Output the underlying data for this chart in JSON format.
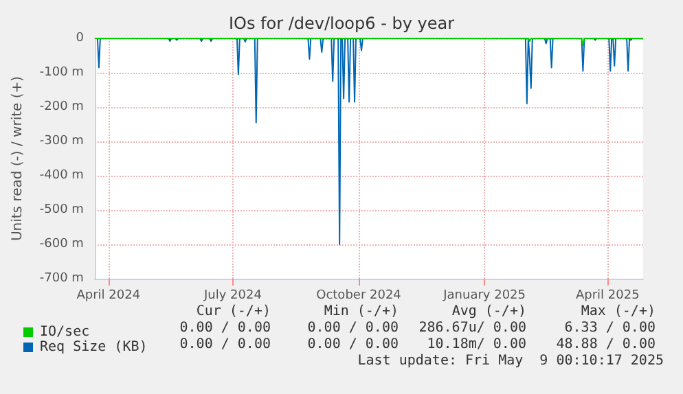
{
  "chart_data": {
    "type": "line",
    "title": "IOs for /dev/loop6 - by year",
    "ylabel": "Units read (-) / write (+)",
    "xlim": [
      "2024-03-22",
      "2025-04-27"
    ],
    "xticks": [
      {
        "value": "2024-04-01",
        "label": "April 2024"
      },
      {
        "value": "2024-07-01",
        "label": "July 2024"
      },
      {
        "value": "2024-10-01",
        "label": "October 2024"
      },
      {
        "value": "2025-01-01",
        "label": "January 2025"
      },
      {
        "value": "2025-04-01",
        "label": "April 2025"
      }
    ],
    "ylim": [
      -700,
      0
    ],
    "yticks": [
      {
        "value": -700,
        "label": "-700 m"
      },
      {
        "value": -600,
        "label": "-600 m"
      },
      {
        "value": -500,
        "label": "-500 m"
      },
      {
        "value": -400,
        "label": "-400 m"
      },
      {
        "value": -300,
        "label": "-300 m"
      },
      {
        "value": -200,
        "label": "-200 m"
      },
      {
        "value": -100,
        "label": "-100 m"
      },
      0
    ],
    "grid": true,
    "legend": "bottom left",
    "series": [
      {
        "name": "IO/sec",
        "color": "#00cc00",
        "x": [
          "2024-03-22",
          "2025-02-02",
          "2025-02-03",
          "2025-02-04",
          "2025-03-13",
          "2025-03-14",
          "2025-03-15",
          "2025-04-27"
        ],
        "values": [
          0,
          0,
          -8,
          0,
          0,
          -20,
          0,
          0
        ]
      },
      {
        "name": "Req Size (KB)",
        "color": "#0066b3",
        "x": [
          "2024-03-22",
          "2024-03-24",
          "2024-03-25",
          "2024-03-26",
          "2024-05-15",
          "2024-05-16",
          "2024-05-17",
          "2024-05-20",
          "2024-05-21",
          "2024-05-22",
          "2024-06-07",
          "2024-06-08",
          "2024-06-09",
          "2024-06-14",
          "2024-06-15",
          "2024-06-16",
          "2024-07-04",
          "2024-07-05",
          "2024-07-06",
          "2024-07-09",
          "2024-07-10",
          "2024-07-11",
          "2024-07-17",
          "2024-07-18",
          "2024-07-19",
          "2024-08-25",
          "2024-08-26",
          "2024-08-27",
          "2024-09-03",
          "2024-09-04",
          "2024-09-05",
          "2024-09-11",
          "2024-09-12",
          "2024-09-13",
          "2024-09-16",
          "2024-09-17",
          "2024-09-18",
          "2024-09-19",
          "2024-09-20",
          "2024-09-21",
          "2024-09-23",
          "2024-09-24",
          "2024-09-25",
          "2024-09-27",
          "2024-09-28",
          "2024-09-29",
          "2024-10-02",
          "2024-10-03",
          "2024-10-04",
          "2025-01-31",
          "2025-02-01",
          "2025-02-02",
          "2025-02-03",
          "2025-02-04",
          "2025-02-05",
          "2025-02-14",
          "2025-02-15",
          "2025-02-16",
          "2025-02-18",
          "2025-02-19",
          "2025-02-20",
          "2025-03-13",
          "2025-03-14",
          "2025-03-15",
          "2025-03-22",
          "2025-03-23",
          "2025-03-24",
          "2025-04-02",
          "2025-04-03",
          "2025-04-04",
          "2025-04-05",
          "2025-04-06",
          "2025-04-07",
          "2025-04-15",
          "2025-04-16",
          "2025-04-17",
          "2025-04-18",
          "2025-04-19",
          "2025-04-27"
        ],
        "values": [
          0,
          0,
          -85,
          0,
          0,
          -8,
          0,
          0,
          -5,
          0,
          0,
          -8,
          0,
          0,
          -8,
          0,
          0,
          -105,
          0,
          0,
          -10,
          0,
          0,
          -245,
          0,
          0,
          -60,
          0,
          0,
          -40,
          0,
          0,
          -125,
          0,
          0,
          -600,
          0,
          0,
          -175,
          0,
          0,
          -185,
          0,
          0,
          -185,
          0,
          0,
          -35,
          0,
          0,
          -190,
          0,
          -60,
          -145,
          0,
          0,
          -15,
          0,
          0,
          -85,
          0,
          0,
          -95,
          0,
          0,
          -5,
          0,
          0,
          -95,
          0,
          0,
          -80,
          0,
          0,
          -95,
          0,
          -5,
          0,
          0
        ]
      }
    ],
    "annotations": [
      "Cur (-/+)",
      "Min (-/+)",
      "Avg (-/+)",
      "Max (-/+)",
      "0.00 / 0.00",
      "0.00 / 0.00",
      "286.67u/ 0.00",
      "6.33 / 0.00",
      "0.00 / 0.00",
      "0.00 / 0.00",
      "10.18m/ 0.00",
      "48.88 / 0.00",
      "Last update: Fri May  9 00:10:17 2025"
    ]
  }
}
